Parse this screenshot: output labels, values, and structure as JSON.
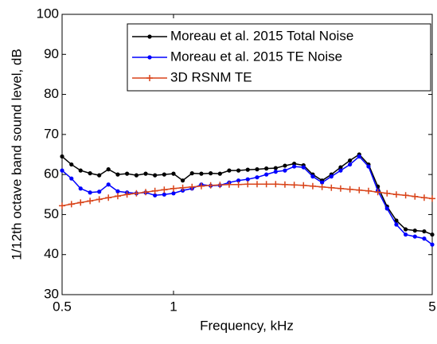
{
  "chart_data": {
    "type": "line",
    "xlabel": "Frequency, kHz",
    "ylabel": "1/12th octave band sound level, dB",
    "xscale": "log",
    "xlim": [
      0.5,
      5
    ],
    "xticks": [
      0.5,
      1,
      5
    ],
    "ylim": [
      30,
      100
    ],
    "yticks": [
      30,
      40,
      50,
      60,
      70,
      80,
      90,
      100
    ],
    "legend": "upper right",
    "x": [
      0.5,
      0.53,
      0.561,
      0.595,
      0.63,
      0.667,
      0.707,
      0.749,
      0.794,
      0.841,
      0.891,
      0.944,
      1.0,
      1.059,
      1.122,
      1.189,
      1.26,
      1.335,
      1.414,
      1.498,
      1.587,
      1.682,
      1.782,
      1.888,
      2.0,
      2.119,
      2.245,
      2.378,
      2.52,
      2.67,
      2.828,
      2.997,
      3.175,
      3.364,
      3.564,
      3.775,
      4.0,
      4.238,
      4.49,
      4.757,
      5.0
    ],
    "series": [
      {
        "name": "Moreau et al. 2015 Total Noise",
        "color": "#000000",
        "marker": "dot",
        "values": [
          64.5,
          62.5,
          61,
          60.3,
          59.8,
          61.3,
          60,
          60.2,
          59.8,
          60.2,
          59.8,
          60,
          60.2,
          58.5,
          60.3,
          60.2,
          60.3,
          60.2,
          61,
          61,
          61.2,
          61.3,
          61.5,
          61.6,
          62.2,
          62.7,
          62.3,
          60,
          58.5,
          60,
          61.8,
          63.5,
          65,
          62.5,
          57,
          52,
          48.5,
          46.3,
          46,
          45.8,
          45
        ]
      },
      {
        "name": "Moreau et al. 2015 TE Noise",
        "color": "#0000ff",
        "marker": "dot",
        "values": [
          61,
          59,
          56.5,
          55.5,
          55.7,
          57.5,
          55.8,
          55.5,
          55.3,
          55.5,
          54.8,
          55,
          55.3,
          56,
          56.5,
          57.5,
          57.2,
          57.3,
          58,
          58.5,
          58.8,
          59.3,
          60,
          60.7,
          61,
          62,
          61.8,
          59.5,
          58,
          59.5,
          61,
          62.5,
          64.5,
          62,
          56,
          51.5,
          47.5,
          45,
          44.5,
          44,
          42.5
        ]
      },
      {
        "name": "3D RSNM TE",
        "color": "#d9441a",
        "marker": "plus",
        "values": [
          52.2,
          52.6,
          53,
          53.4,
          53.8,
          54.2,
          54.6,
          55,
          55.3,
          55.6,
          55.9,
          56.2,
          56.5,
          56.7,
          56.9,
          57.1,
          57.3,
          57.4,
          57.5,
          57.5,
          57.6,
          57.6,
          57.6,
          57.6,
          57.5,
          57.4,
          57.3,
          57.1,
          56.9,
          56.7,
          56.5,
          56.3,
          56.1,
          55.9,
          55.6,
          55.3,
          55,
          54.8,
          54.5,
          54.2,
          54
        ]
      }
    ]
  }
}
